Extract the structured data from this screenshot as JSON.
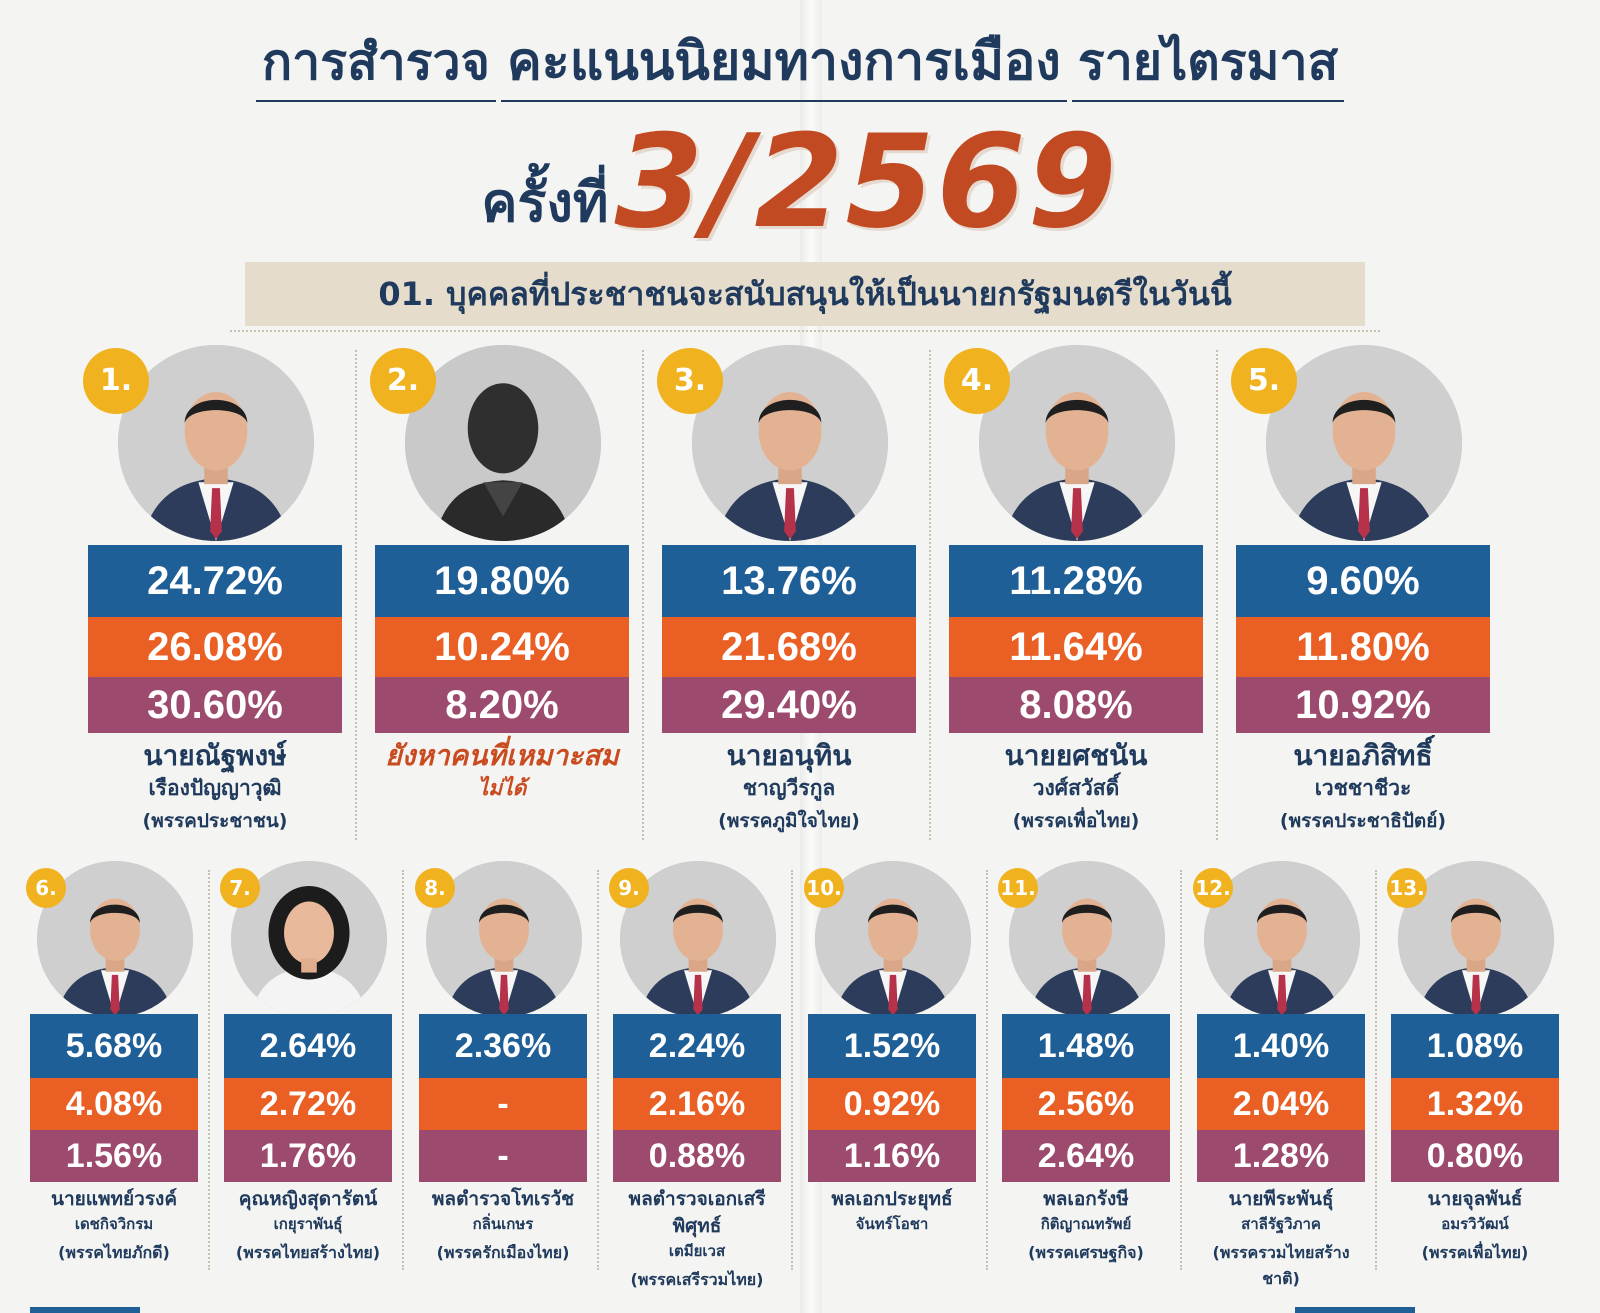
{
  "header": {
    "title_left": "การสำรวจ",
    "title_center": "คะแนนนิยมทางการเมือง",
    "title_right": "รายไตรมาส",
    "round_label": "ครั้งที่",
    "round_number": "3/2569",
    "question": "01. บุคคลที่ประชาชนจะสนับสนุนให้เป็นนายกรัฐมนตรีในวันนี้"
  },
  "colors": {
    "row1": "#1f5f97",
    "row2": "#ea5f24",
    "row3": "#9c4a6d",
    "rank_badge": "#f0b21e",
    "accent": "#c24a22"
  },
  "chart_data": {
    "type": "table",
    "series": [
      {
        "color": "#1f5f97",
        "values": [
          24.72,
          19.8,
          13.76,
          11.28,
          9.6,
          5.68,
          2.64,
          2.36,
          2.24,
          1.52,
          1.48,
          1.4,
          1.08
        ]
      },
      {
        "color": "#ea5f24",
        "values": [
          26.08,
          10.24,
          21.68,
          11.64,
          11.8,
          4.08,
          2.72,
          null,
          2.16,
          0.92,
          2.56,
          2.04,
          1.32
        ]
      },
      {
        "color": "#9c4a6d",
        "values": [
          30.6,
          8.2,
          29.4,
          8.08,
          10.92,
          1.56,
          1.76,
          null,
          0.88,
          1.16,
          2.64,
          1.28,
          0.8
        ]
      }
    ],
    "candidates": [
      {
        "rank": "1.",
        "v1": "24.72%",
        "v2": "26.08%",
        "v3": "30.60%",
        "name1": "นายณัฐพงษ์",
        "name2": "เรืองปัญญาวุฒิ",
        "party": "(พรรคประชาชน)",
        "photo": "man-portrait"
      },
      {
        "rank": "2.",
        "v1": "19.80%",
        "v2": "10.24%",
        "v3": "8.20%",
        "name1": "ยังหาคนที่เหมาะสม",
        "name2": "ไม่ได้",
        "party": "",
        "photo": "silhouette",
        "special": true
      },
      {
        "rank": "3.",
        "v1": "13.76%",
        "v2": "21.68%",
        "v3": "29.40%",
        "name1": "นายอนุทิน",
        "name2": "ชาญวีรกูล",
        "party": "(พรรคภูมิใจไทย)",
        "photo": "man-portrait"
      },
      {
        "rank": "4.",
        "v1": "11.28%",
        "v2": "11.64%",
        "v3": "8.08%",
        "name1": "นายยศชนัน",
        "name2": "วงศ์สวัสดิ์",
        "party": "(พรรคเพื่อไทย)",
        "photo": "man-portrait"
      },
      {
        "rank": "5.",
        "v1": "9.60%",
        "v2": "11.80%",
        "v3": "10.92%",
        "name1": "นายอภิสิทธิ์",
        "name2": "เวชชาชีวะ",
        "party": "(พรรคประชาธิปัตย์)",
        "photo": "man-portrait"
      },
      {
        "rank": "6.",
        "v1": "5.68%",
        "v2": "4.08%",
        "v3": "1.56%",
        "name1": "นายแพทย์วรงค์",
        "name2": "เดชกิจวิกรม",
        "party": "(พรรคไทยภักดี)",
        "photo": "man-portrait"
      },
      {
        "rank": "7.",
        "v1": "2.64%",
        "v2": "2.72%",
        "v3": "1.76%",
        "name1": "คุณหญิงสุดารัตน์",
        "name2": "เกยุราพันธุ์",
        "party": "(พรรคไทยสร้างไทย)",
        "photo": "woman-portrait"
      },
      {
        "rank": "8.",
        "v1": "2.36%",
        "v2": "-",
        "v3": "-",
        "name1": "พลตำรวจโทเรวัช",
        "name2": "กลิ่นเกษร",
        "party": "(พรรครักเมืองไทย)",
        "photo": "man-portrait"
      },
      {
        "rank": "9.",
        "v1": "2.24%",
        "v2": "2.16%",
        "v3": "0.88%",
        "name1": "พลตำรวจเอกเสรีพิศุทธ์",
        "name2": "เตมียเวส",
        "party": "(พรรคเสรีรวมไทย)",
        "photo": "man-portrait"
      },
      {
        "rank": "10.",
        "v1": "1.52%",
        "v2": "0.92%",
        "v3": "1.16%",
        "name1": "พลเอกประยุทธ์",
        "name2": "จันทร์โอชา",
        "party": "",
        "photo": "man-portrait"
      },
      {
        "rank": "11.",
        "v1": "1.48%",
        "v2": "2.56%",
        "v3": "2.64%",
        "name1": "พลเอกรังษี",
        "name2": "กิติญาณทรัพย์",
        "party": "(พรรคเศรษฐกิจ)",
        "photo": "man-portrait"
      },
      {
        "rank": "12.",
        "v1": "1.40%",
        "v2": "2.04%",
        "v3": "1.28%",
        "name1": "นายพีระพันธุ์",
        "name2": "สาลีรัฐวิภาค",
        "party": "(พรรครวมไทยสร้างชาติ)",
        "photo": "man-portrait"
      },
      {
        "rank": "13.",
        "v1": "1.08%",
        "v2": "1.32%",
        "v3": "0.80%",
        "name1": "นายจุลพันธ์",
        "name2": "อมรวิวัฒน์",
        "party": "(พรรคเพื่อไทย)",
        "photo": "man-portrait"
      }
    ]
  }
}
